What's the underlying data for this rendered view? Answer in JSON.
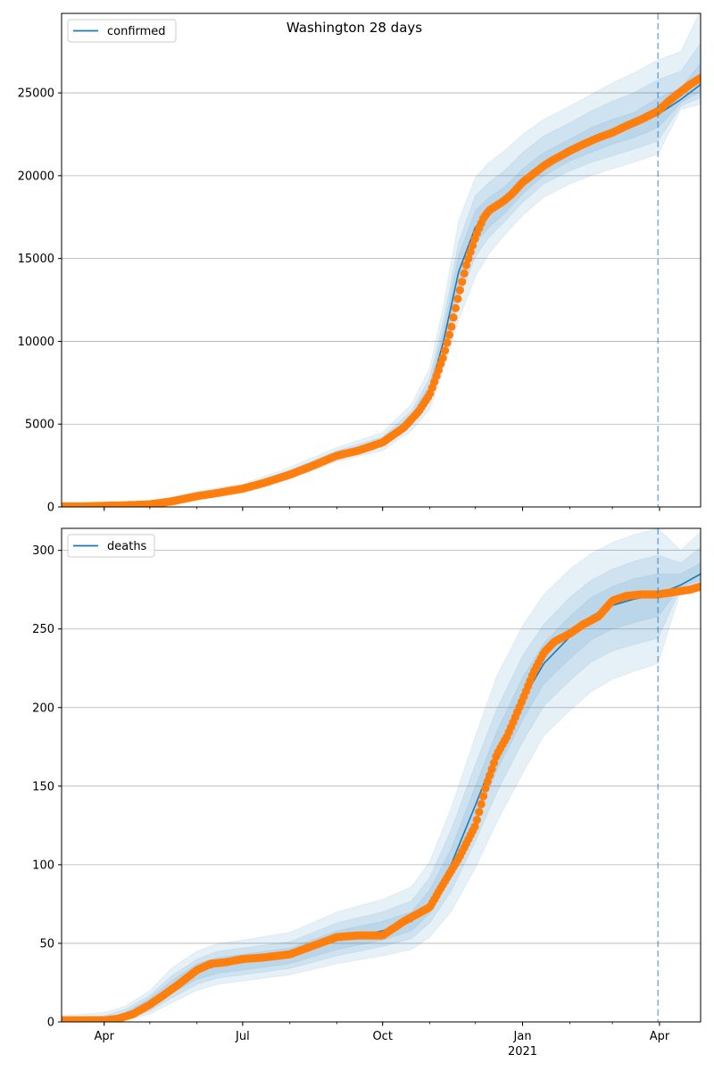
{
  "figure": {
    "title": "Washington 28 days"
  },
  "colors": {
    "observed": "#ff7f0e",
    "model": "#1f77b4",
    "band": "#1f77b4",
    "grid": "#b0b0b0",
    "forecast_line": "#1f77b4"
  },
  "chart_data": [
    {
      "type": "line",
      "panel": "top",
      "title": "Washington 28 days",
      "xlabel": "",
      "ylabel": "",
      "x_tick_labels": [
        "Apr",
        "Jul",
        "Oct",
        "Jan",
        "Apr"
      ],
      "x_tick_dates": [
        "2020-04-01",
        "2020-07-01",
        "2020-10-01",
        "2021-01-01",
        "2021-04-01"
      ],
      "x_year_label": "2021",
      "xlim": [
        "2020-03-04",
        "2021-04-28"
      ],
      "ylim": [
        0,
        29800
      ],
      "yticks": [
        0,
        5000,
        10000,
        15000,
        20000,
        25000
      ],
      "grid": "horizontal",
      "legend": {
        "entries": [
          "confirmed"
        ],
        "placement": "top-left"
      },
      "forecast_start": "2021-03-31",
      "model_dates": [
        "2020-03-04",
        "2020-04-01",
        "2020-05-01",
        "2020-06-01",
        "2020-07-01",
        "2020-08-01",
        "2020-09-01",
        "2020-10-01",
        "2020-10-20",
        "2020-11-01",
        "2020-11-10",
        "2020-11-20",
        "2020-12-01",
        "2020-12-10",
        "2020-12-20",
        "2021-01-01",
        "2021-01-15",
        "2021-02-01",
        "2021-02-15",
        "2021-03-01",
        "2021-03-15",
        "2021-03-31",
        "2021-04-15",
        "2021-04-28"
      ],
      "model": [
        30,
        60,
        190,
        720,
        1120,
        2000,
        3150,
        3900,
        5300,
        7000,
        10000,
        14200,
        16900,
        17800,
        18400,
        19500,
        20600,
        21500,
        22100,
        22600,
        23000,
        23700,
        24600,
        25500
      ],
      "bands": [
        {
          "lower": [
            0,
            20,
            120,
            560,
            950,
            1700,
            2750,
            3400,
            4600,
            5900,
            8300,
            11300,
            13900,
            15300,
            16400,
            17600,
            18700,
            19500,
            20000,
            20400,
            20800,
            21300,
            24000,
            24300
          ],
          "upper": [
            80,
            120,
            300,
            940,
            1390,
            2400,
            3600,
            4500,
            6200,
            8400,
            12200,
            17300,
            19900,
            20800,
            21500,
            22500,
            23400,
            24200,
            24900,
            25600,
            26200,
            27000,
            27500,
            30000
          ]
        },
        {
          "lower": [
            10,
            35,
            150,
            630,
            1020,
            1830,
            2930,
            3630,
            4920,
            6400,
            9000,
            12500,
            15100,
            16300,
            17200,
            18400,
            19500,
            20300,
            20800,
            21200,
            21600,
            22100,
            24200,
            24700
          ],
          "upper": [
            60,
            95,
            250,
            840,
            1260,
            2220,
            3400,
            4230,
            5800,
            7800,
            11300,
            16000,
            18800,
            19600,
            20300,
            21400,
            22400,
            23200,
            23900,
            24500,
            25000,
            25800,
            26300,
            28000
          ]
        },
        {
          "lower": [
            20,
            48,
            170,
            680,
            1070,
            1920,
            3050,
            3780,
            5120,
            6700,
            9500,
            13300,
            15900,
            16900,
            17700,
            18900,
            20000,
            20900,
            21400,
            21900,
            22300,
            22900,
            24400,
            25100
          ],
          "upper": [
            45,
            75,
            215,
            770,
            1180,
            2100,
            3260,
            4050,
            5550,
            7400,
            10700,
            15200,
            17900,
            18700,
            19300,
            20400,
            21400,
            22200,
            22900,
            23400,
            23800,
            24700,
            25300,
            26800
          ]
        }
      ],
      "observed_dates": [
        "2020-03-04",
        "2020-03-20",
        "2020-04-01",
        "2020-04-15",
        "2020-05-01",
        "2020-05-15",
        "2020-06-01",
        "2020-06-15",
        "2020-07-01",
        "2020-07-15",
        "2020-08-01",
        "2020-08-15",
        "2020-09-01",
        "2020-09-15",
        "2020-10-01",
        "2020-10-15",
        "2020-10-25",
        "2020-11-01",
        "2020-11-05",
        "2020-11-10",
        "2020-11-15",
        "2020-11-20",
        "2020-11-25",
        "2020-12-01",
        "2020-12-06",
        "2020-12-10",
        "2020-12-15",
        "2020-12-20",
        "2020-12-25",
        "2021-01-01",
        "2021-01-08",
        "2021-01-15",
        "2021-01-22",
        "2021-02-01",
        "2021-02-10",
        "2021-02-20",
        "2021-03-01",
        "2021-03-10",
        "2021-03-20",
        "2021-03-31",
        "2021-04-07",
        "2021-04-14",
        "2021-04-21",
        "2021-04-28"
      ],
      "observed": [
        30,
        40,
        70,
        100,
        160,
        330,
        650,
        850,
        1100,
        1450,
        1950,
        2450,
        3100,
        3400,
        3900,
        4800,
        5800,
        6800,
        7800,
        9100,
        10800,
        12800,
        14600,
        16300,
        17400,
        17900,
        18200,
        18500,
        18900,
        19600,
        20100,
        20600,
        21000,
        21500,
        21900,
        22300,
        22600,
        23000,
        23400,
        23900,
        24500,
        25000,
        25500,
        25900
      ]
    },
    {
      "type": "line",
      "panel": "bottom",
      "title": "",
      "xlabel": "",
      "ylabel": "",
      "x_tick_labels": [
        "Apr",
        "Jul",
        "Oct",
        "Jan",
        "Apr"
      ],
      "x_tick_dates": [
        "2020-04-01",
        "2020-07-01",
        "2020-10-01",
        "2021-01-01",
        "2021-04-01"
      ],
      "x_year_label": "2021",
      "xlim": [
        "2020-03-04",
        "2021-04-28"
      ],
      "ylim": [
        0,
        314
      ],
      "yticks": [
        0,
        50,
        100,
        150,
        200,
        250,
        300
      ],
      "grid": "horizontal",
      "legend": {
        "entries": [
          "deaths"
        ],
        "placement": "top-left"
      },
      "forecast_start": "2021-03-31",
      "model_dates": [
        "2020-03-04",
        "2020-04-01",
        "2020-04-15",
        "2020-05-01",
        "2020-05-15",
        "2020-06-01",
        "2020-06-15",
        "2020-07-01",
        "2020-08-01",
        "2020-09-01",
        "2020-10-01",
        "2020-10-20",
        "2020-11-01",
        "2020-11-15",
        "2020-12-01",
        "2020-12-15",
        "2021-01-01",
        "2021-01-15",
        "2021-02-01",
        "2021-02-15",
        "2021-03-01",
        "2021-03-15",
        "2021-03-31",
        "2021-04-15",
        "2021-04-28"
      ],
      "model": [
        0,
        1,
        4,
        12,
        22,
        32,
        36,
        38,
        42,
        52,
        58,
        64,
        76,
        100,
        138,
        172,
        205,
        228,
        245,
        258,
        265,
        269,
        272,
        278,
        285
      ],
      "bands": [
        {
          "lower": [
            0,
            0,
            1,
            5,
            12,
            20,
            24,
            26,
            30,
            37,
            42,
            46,
            54,
            70,
            98,
            127,
            158,
            182,
            198,
            210,
            218,
            223,
            228,
            274,
            275
          ],
          "upper": [
            4,
            6,
            10,
            20,
            34,
            45,
            50,
            52,
            57,
            70,
            78,
            86,
            102,
            136,
            182,
            220,
            252,
            272,
            288,
            298,
            305,
            310,
            314,
            300,
            312
          ]
        },
        {
          "lower": [
            0,
            0,
            2,
            7,
            15,
            24,
            28,
            30,
            34,
            42,
            48,
            53,
            63,
            83,
            115,
            146,
            178,
            201,
            217,
            229,
            236,
            240,
            244,
            276,
            278
          ],
          "upper": [
            3,
            4,
            8,
            17,
            29,
            40,
            45,
            47,
            51,
            63,
            70,
            77,
            92,
            122,
            164,
            199,
            233,
            253,
            270,
            281,
            288,
            293,
            297,
            292,
            302
          ]
        },
        {
          "lower": [
            0,
            0,
            3,
            9,
            18,
            27,
            31,
            33,
            37,
            46,
            52,
            58,
            69,
            92,
            127,
            160,
            192,
            215,
            231,
            243,
            250,
            254,
            258,
            277,
            281
          ],
          "upper": [
            1,
            2,
            6,
            15,
            26,
            37,
            41,
            43,
            47,
            58,
            64,
            70,
            84,
            110,
            150,
            185,
            219,
            241,
            258,
            270,
            277,
            282,
            285,
            285,
            292
          ]
        }
      ],
      "observed_dates": [
        "2020-03-04",
        "2020-04-01",
        "2020-04-10",
        "2020-04-20",
        "2020-05-01",
        "2020-05-10",
        "2020-05-20",
        "2020-06-01",
        "2020-06-10",
        "2020-06-20",
        "2020-07-01",
        "2020-07-15",
        "2020-08-01",
        "2020-08-15",
        "2020-09-01",
        "2020-09-15",
        "2020-10-01",
        "2020-10-15",
        "2020-11-01",
        "2020-11-10",
        "2020-11-20",
        "2020-12-01",
        "2020-12-08",
        "2020-12-15",
        "2020-12-22",
        "2021-01-01",
        "2021-01-08",
        "2021-01-15",
        "2021-01-22",
        "2021-02-01",
        "2021-02-10",
        "2021-02-20",
        "2021-03-01",
        "2021-03-10",
        "2021-03-20",
        "2021-03-31",
        "2021-04-07",
        "2021-04-14",
        "2021-04-21",
        "2021-04-28"
      ],
      "observed": [
        1,
        1,
        2,
        5,
        11,
        17,
        24,
        33,
        37,
        38,
        40,
        41,
        43,
        48,
        54,
        55,
        55,
        64,
        73,
        88,
        104,
        125,
        150,
        170,
        182,
        205,
        222,
        235,
        242,
        247,
        253,
        258,
        268,
        271,
        272,
        272,
        273,
        274,
        275,
        277
      ]
    }
  ]
}
